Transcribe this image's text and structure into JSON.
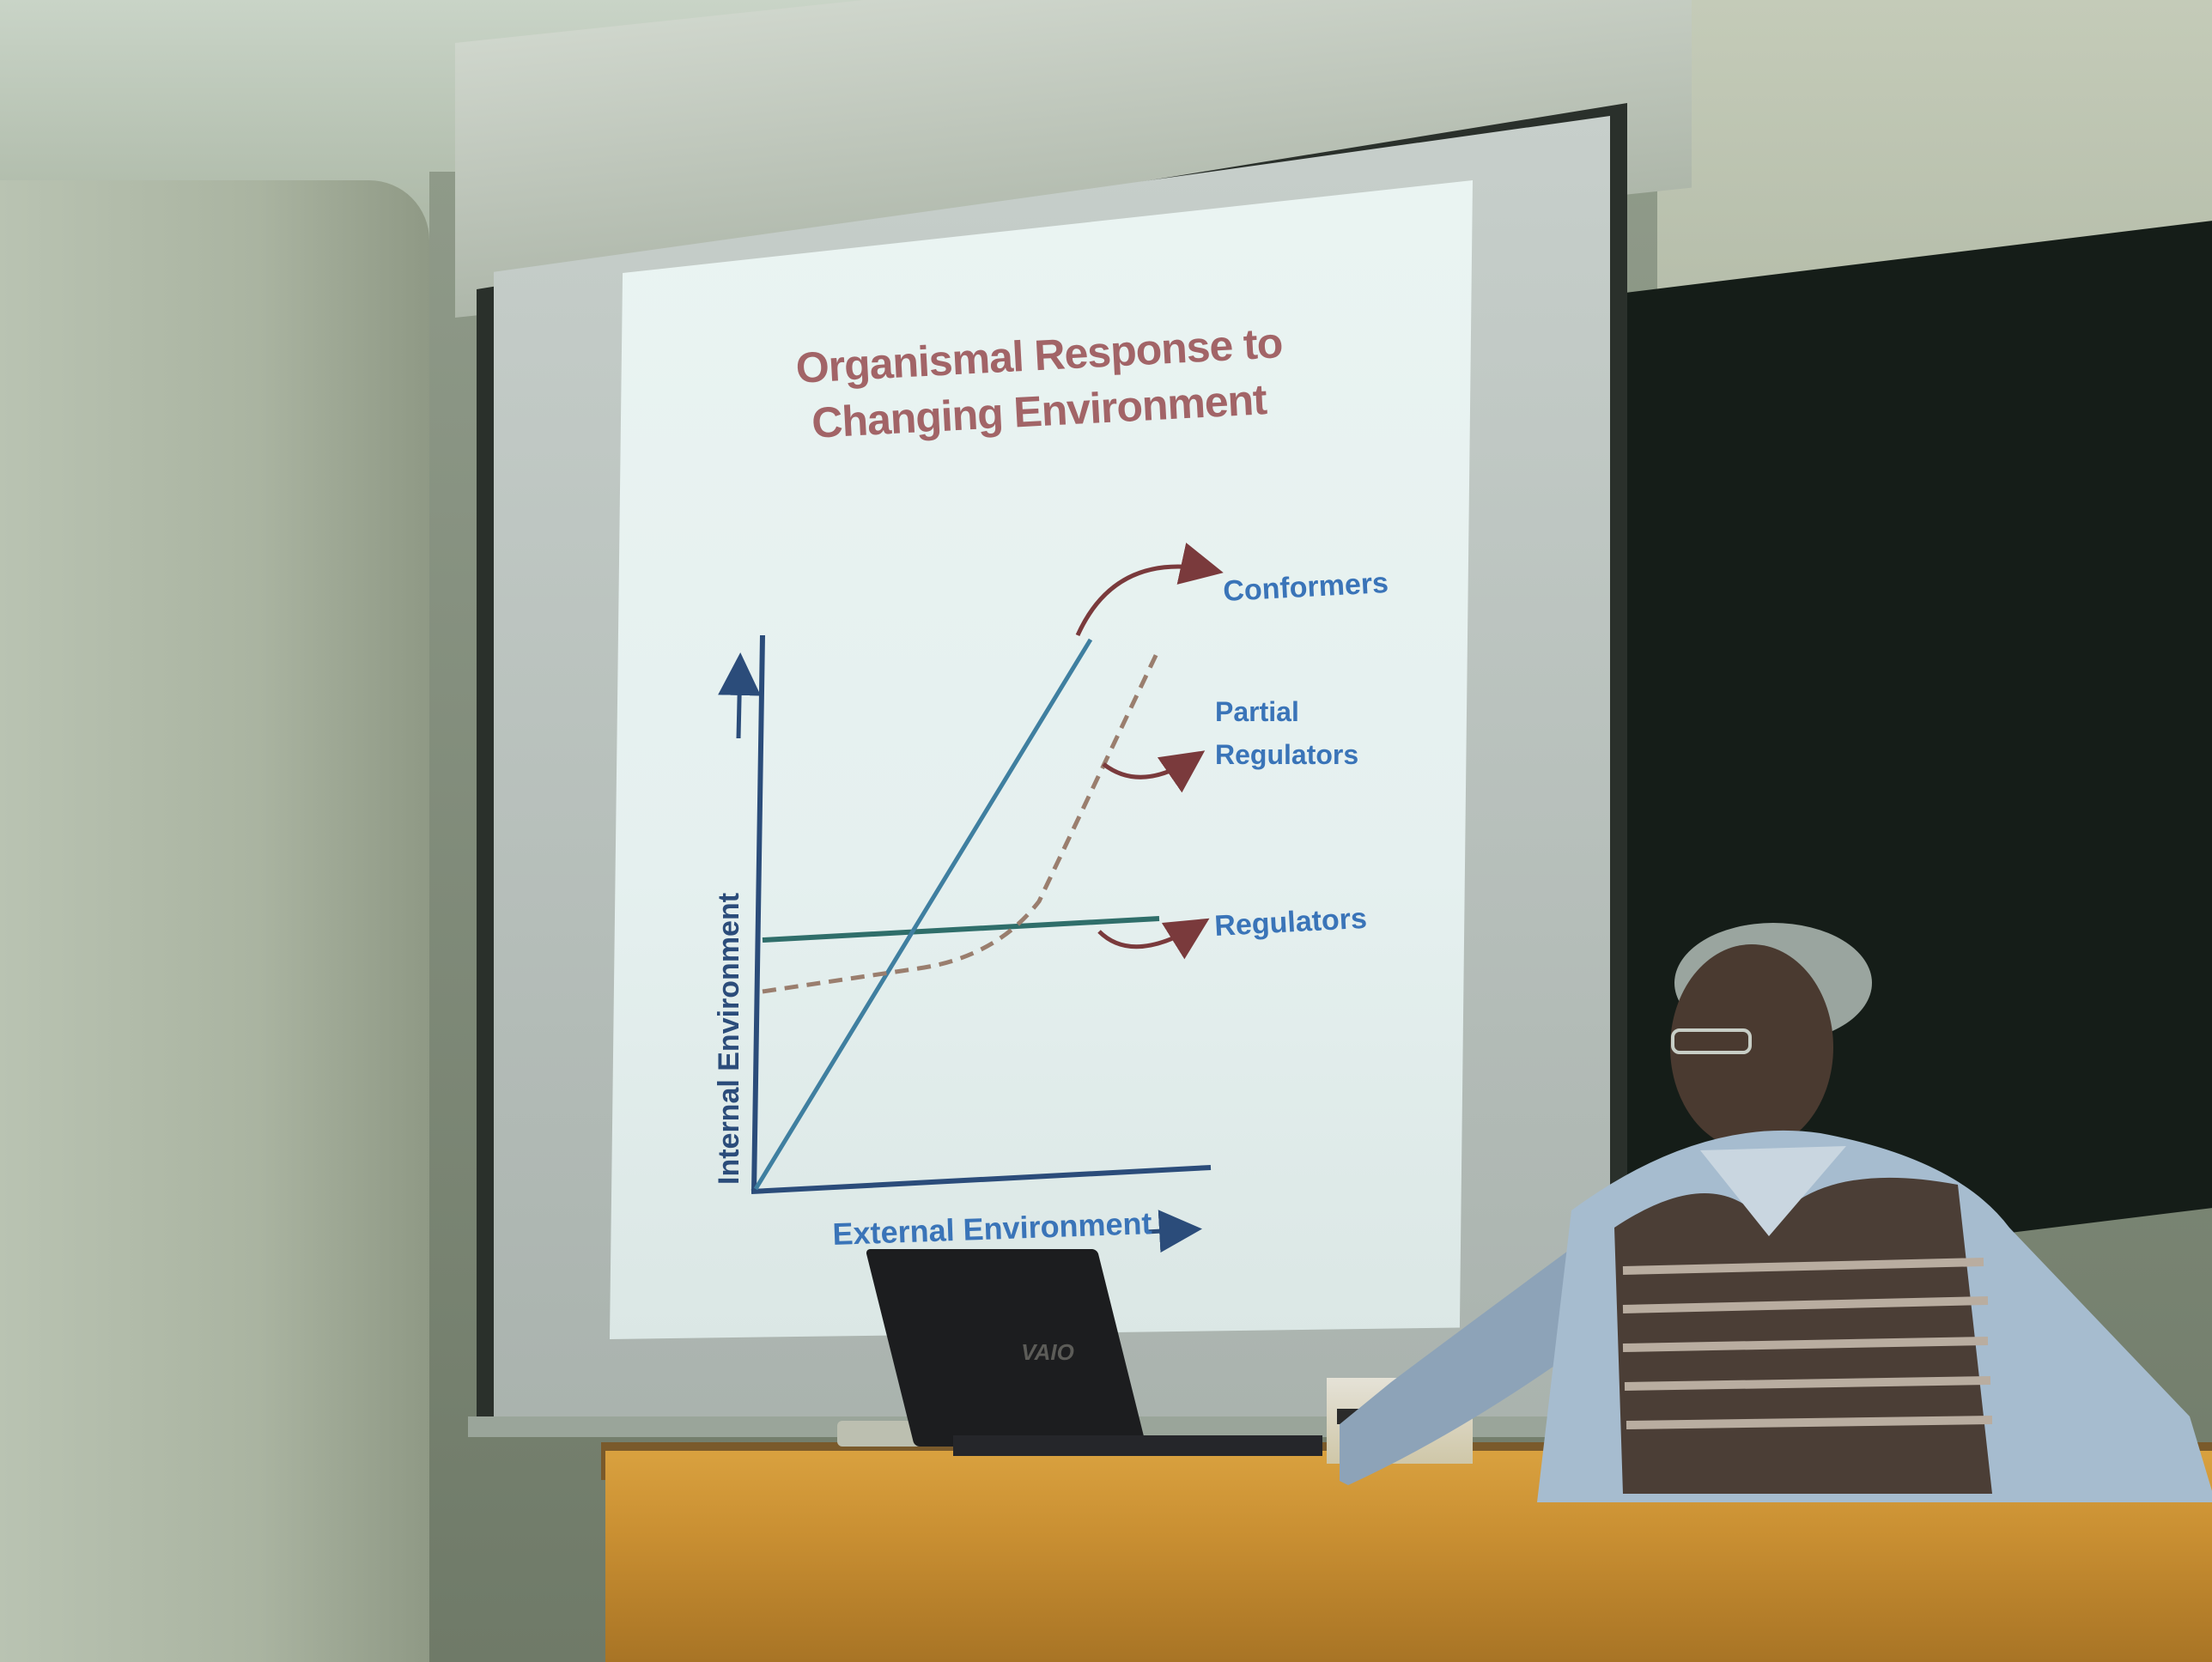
{
  "slide": {
    "title_line1": "Organismal Response to",
    "title_line2": "Changing Environment"
  },
  "chart_data": {
    "type": "line",
    "title": "Organismal Response to Changing Environment",
    "xlabel": "External Environment",
    "ylabel": "Internal Environment",
    "series": [
      {
        "name": "Conformers",
        "style": "solid",
        "color": "#3f7fa0"
      },
      {
        "name": "Partial Regulators",
        "style": "dashed",
        "color": "#9a7e6e"
      },
      {
        "name": "Regulators",
        "style": "solid",
        "color": "#2f6e6a"
      }
    ],
    "annotations": [
      "Conformers",
      "Partial Regulators",
      "Regulators"
    ]
  },
  "laptop": {
    "logo": "VAIO"
  },
  "colors": {
    "title": "#a26467",
    "label_blue": "#3a74b8",
    "axis": "#2b4c7a",
    "arrow": "#7a3a3c"
  }
}
